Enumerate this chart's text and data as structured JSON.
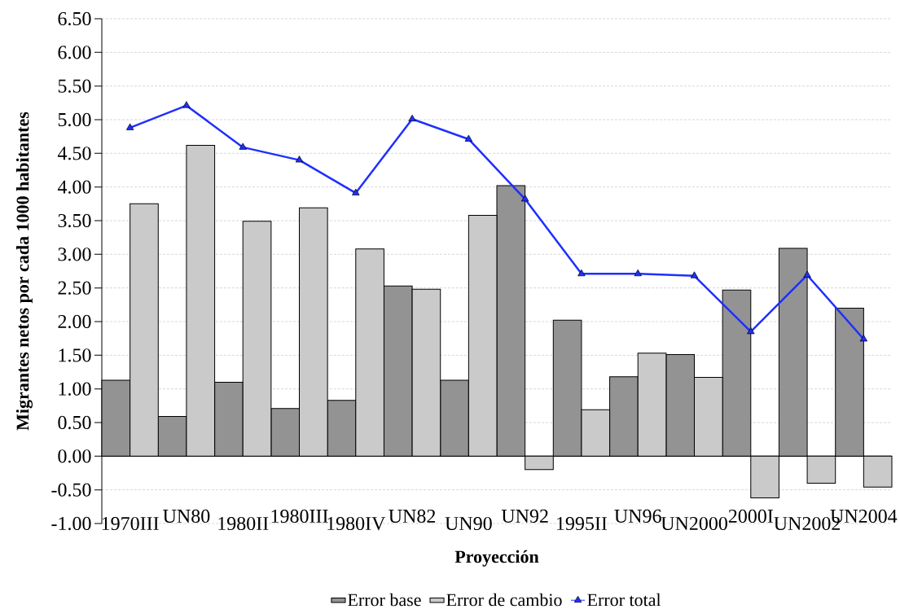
{
  "chart_data": {
    "type": "bar",
    "xlabel": "Proyección",
    "ylabel": "Migrantes netos por cada 1000 habitantes",
    "categories": [
      "1970III",
      "UN80",
      "1980II",
      "1980III",
      "1980IV",
      "UN82",
      "UN90",
      "UN92",
      "1995II",
      "UN96",
      "UN2000",
      "2000I",
      "UN2002",
      "UN2004"
    ],
    "ylim": [
      -1,
      6.5
    ],
    "yticks": [
      {
        "value": -1,
        "label": "-1.00"
      },
      {
        "value": -0.5,
        "label": "-0.50"
      },
      {
        "value": 0,
        "label": "0.00"
      },
      {
        "value": 0.5,
        "label": "0.50"
      },
      {
        "value": 1,
        "label": "1.00"
      },
      {
        "value": 1.5,
        "label": "1.50"
      },
      {
        "value": 2,
        "label": "2.00"
      },
      {
        "value": 2.5,
        "label": "2.50"
      },
      {
        "value": 3,
        "label": "3.00"
      },
      {
        "value": 3.5,
        "label": "3.50"
      },
      {
        "value": 4,
        "label": "4.00"
      },
      {
        "value": 4.5,
        "label": "4.50"
      },
      {
        "value": 5,
        "label": "5.00"
      },
      {
        "value": 5.5,
        "label": "5.50"
      },
      {
        "value": 6,
        "label": "6.00"
      },
      {
        "value": 6.5,
        "label": "6.50"
      }
    ],
    "grid": "y",
    "legend": "bottom",
    "series": [
      {
        "name": "Error base",
        "color": "#939393",
        "values": [
          1.13,
          0.59,
          1.1,
          0.71,
          0.83,
          2.53,
          1.13,
          4.02,
          2.02,
          1.18,
          1.51,
          2.47,
          3.09,
          2.2
        ]
      },
      {
        "name": "Error de cambio",
        "color": "#cacaca",
        "values": [
          3.75,
          4.62,
          3.49,
          3.69,
          3.08,
          2.48,
          3.58,
          -0.2,
          0.69,
          1.53,
          1.17,
          -0.62,
          -0.4,
          -0.46
        ]
      },
      {
        "name": "Error total",
        "type": "line",
        "color": "#1f2fff",
        "marker": "triangle",
        "values": [
          4.88,
          5.21,
          4.59,
          4.4,
          3.91,
          5.01,
          4.71,
          3.82,
          2.71,
          2.71,
          2.68,
          1.85,
          2.69,
          1.74
        ]
      }
    ]
  }
}
